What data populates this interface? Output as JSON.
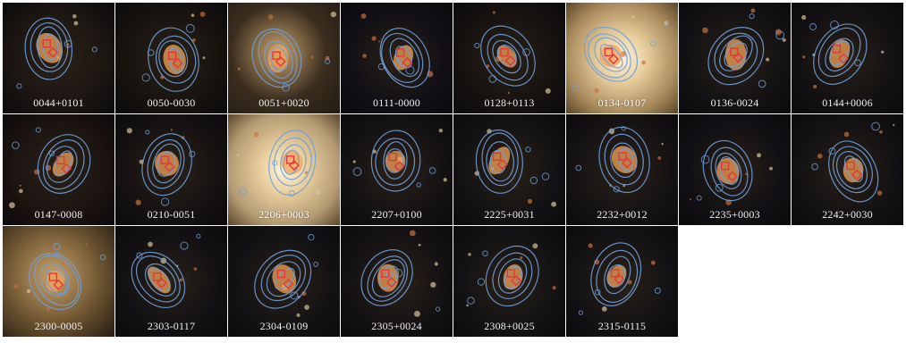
{
  "figure": {
    "tiles": [
      {
        "label": "0044+0101",
        "bg": "#1c1612",
        "halo": "none"
      },
      {
        "label": "0050-0030",
        "bg": "#17130f",
        "halo": "none"
      },
      {
        "label": "0051+0020",
        "bg": "#3a2d1f",
        "halo": "warm"
      },
      {
        "label": "0111-0000",
        "bg": "#121016",
        "halo": "none"
      },
      {
        "label": "0128+0113",
        "bg": "#161210",
        "halo": "none"
      },
      {
        "label": "0134-0107",
        "bg": "#a98a5c",
        "halo": "bright"
      },
      {
        "label": "0136-0024",
        "bg": "#141214",
        "halo": "none"
      },
      {
        "label": "0144+0006",
        "bg": "#131113",
        "halo": "none"
      },
      {
        "label": "0147-0008",
        "bg": "#1b1410",
        "halo": "none"
      },
      {
        "label": "0210-0051",
        "bg": "#161212",
        "halo": "none"
      },
      {
        "label": "2206+0003",
        "bg": "#b39a72",
        "halo": "bright"
      },
      {
        "label": "2207+0100",
        "bg": "#151214",
        "halo": "none"
      },
      {
        "label": "2225+0031",
        "bg": "#141214",
        "halo": "none"
      },
      {
        "label": "2232+0012",
        "bg": "#161314",
        "halo": "none"
      },
      {
        "label": "2235+0003",
        "bg": "#121014",
        "halo": "none"
      },
      {
        "label": "2242+0030",
        "bg": "#141214",
        "halo": "none"
      },
      {
        "label": "2300-0005",
        "bg": "#6e5531",
        "halo": "warm"
      },
      {
        "label": "2303-0117",
        "bg": "#131114",
        "halo": "none"
      },
      {
        "label": "2304-0109",
        "bg": "#141214",
        "halo": "none"
      },
      {
        "label": "2305+0024",
        "bg": "#151214",
        "halo": "none"
      },
      {
        "label": "2308+0025",
        "bg": "#131214",
        "halo": "none"
      },
      {
        "label": "2315-0115",
        "bg": "#141214",
        "halo": "none"
      }
    ],
    "colors": {
      "contour": "#6f9fd8",
      "marker": "#e0393a",
      "galaxy_core": "#f0a35a"
    }
  }
}
